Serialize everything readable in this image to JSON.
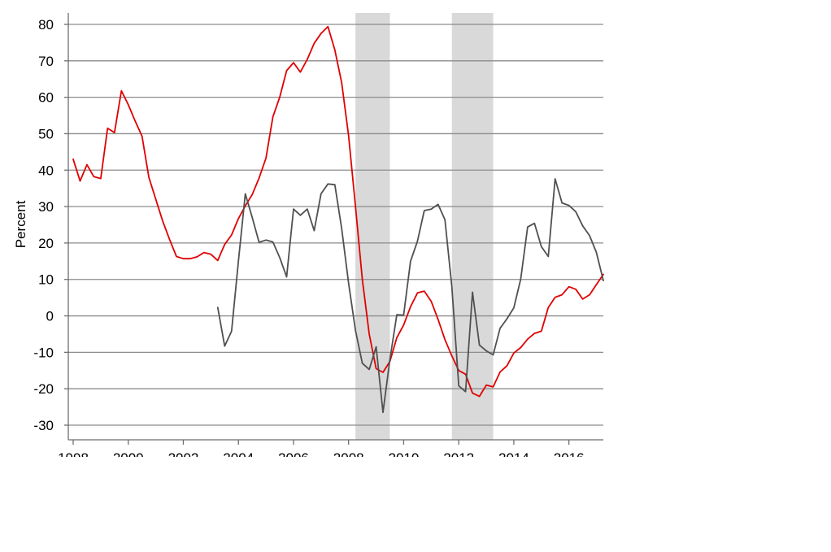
{
  "chart_data": {
    "type": "line",
    "ylabel": "Percent",
    "xlim": [
      1998,
      2017.25
    ],
    "ylim": [
      -32,
      83
    ],
    "x_ticks": [
      1998,
      2000,
      2002,
      2004,
      2006,
      2008,
      2010,
      2012,
      2014,
      2016
    ],
    "x_tick_labels": [
      "1998",
      "2000",
      "2002",
      "2004",
      "2006",
      "2008",
      "2010",
      "2012",
      "2014",
      "2016"
    ],
    "y_ticks": [
      80,
      70,
      60,
      50,
      40,
      30,
      20,
      10,
      0,
      -10,
      -20,
      -30
    ],
    "y_tick_labels": [
      "80",
      "70",
      "60",
      "50",
      "40",
      "30",
      "20",
      "10",
      "0",
      "-10",
      "-20",
      "-30"
    ],
    "grid": "horizontal",
    "legend": "none",
    "recession_bands": [
      {
        "start": 2008.25,
        "end": 2009.5
      },
      {
        "start": 2011.75,
        "end": 2013.25
      }
    ],
    "colors": {
      "red_series": "#e00000",
      "gray_series": "#505050",
      "band": "#d9d9d9",
      "grid": "#8c8c8c"
    },
    "series": [
      {
        "color": "#e00000",
        "points": [
          [
            1998.0,
            43
          ],
          [
            1998.25,
            37
          ],
          [
            1998.5,
            41.5
          ],
          [
            1998.75,
            38.2
          ],
          [
            1999.0,
            37.7
          ],
          [
            1999.25,
            51.5
          ],
          [
            1999.5,
            50.3
          ],
          [
            1999.75,
            61.8
          ],
          [
            2000.0,
            58
          ],
          [
            2000.25,
            53.5
          ],
          [
            2000.5,
            49.3
          ],
          [
            2000.75,
            38
          ],
          [
            2001.0,
            32
          ],
          [
            2001.25,
            26
          ],
          [
            2001.5,
            21
          ],
          [
            2001.75,
            16.3
          ],
          [
            2002.0,
            15.7
          ],
          [
            2002.25,
            15.7
          ],
          [
            2002.5,
            16.2
          ],
          [
            2002.75,
            17.4
          ],
          [
            2003.0,
            16.9
          ],
          [
            2003.25,
            15.2
          ],
          [
            2003.5,
            19.6
          ],
          [
            2003.75,
            22.2
          ],
          [
            2004.0,
            26.7
          ],
          [
            2004.25,
            30.2
          ],
          [
            2004.5,
            33.3
          ],
          [
            2004.75,
            37.8
          ],
          [
            2005.0,
            43.3
          ],
          [
            2005.25,
            54.6
          ],
          [
            2005.5,
            60
          ],
          [
            2005.75,
            67.3
          ],
          [
            2006.0,
            69.5
          ],
          [
            2006.25,
            66.9
          ],
          [
            2006.5,
            70.4
          ],
          [
            2006.75,
            74.8
          ],
          [
            2007.0,
            77.5
          ],
          [
            2007.25,
            79.4
          ],
          [
            2007.5,
            73
          ],
          [
            2007.75,
            64
          ],
          [
            2008.0,
            49.5
          ],
          [
            2008.25,
            30
          ],
          [
            2008.5,
            10
          ],
          [
            2008.75,
            -5
          ],
          [
            2009.0,
            -14.5
          ],
          [
            2009.25,
            -15.5
          ],
          [
            2009.5,
            -12.5
          ],
          [
            2009.75,
            -6
          ],
          [
            2010.0,
            -2.5
          ],
          [
            2010.25,
            2.5
          ],
          [
            2010.5,
            6.3
          ],
          [
            2010.75,
            6.8
          ],
          [
            2011.0,
            4
          ],
          [
            2011.25,
            -1
          ],
          [
            2011.5,
            -6.5
          ],
          [
            2011.75,
            -11
          ],
          [
            2012.0,
            -15
          ],
          [
            2012.25,
            -16
          ],
          [
            2012.5,
            -21.2
          ],
          [
            2012.75,
            -22.1
          ],
          [
            2013.0,
            -19
          ],
          [
            2013.25,
            -19.5
          ],
          [
            2013.5,
            -15.4
          ],
          [
            2013.75,
            -13.7
          ],
          [
            2014.0,
            -10.2
          ],
          [
            2014.25,
            -8.7
          ],
          [
            2014.5,
            -6.4
          ],
          [
            2014.75,
            -4.8
          ],
          [
            2015.0,
            -4.2
          ],
          [
            2015.25,
            2.3
          ],
          [
            2015.5,
            5.1
          ],
          [
            2015.75,
            5.8
          ],
          [
            2016.0,
            8
          ],
          [
            2016.25,
            7.3
          ],
          [
            2016.5,
            4.6
          ],
          [
            2016.75,
            5.8
          ],
          [
            2017.0,
            8.6
          ],
          [
            2017.25,
            11.4
          ]
        ]
      },
      {
        "color": "#505050",
        "points": [
          [
            2003.25,
            2.3
          ],
          [
            2003.5,
            -8.3
          ],
          [
            2003.75,
            -4.2
          ],
          [
            2004.0,
            15
          ],
          [
            2004.25,
            33.5
          ],
          [
            2004.5,
            27
          ],
          [
            2004.75,
            20.2
          ],
          [
            2005.0,
            20.8
          ],
          [
            2005.25,
            20.3
          ],
          [
            2005.5,
            16
          ],
          [
            2005.75,
            10.7
          ],
          [
            2006.0,
            29.3
          ],
          [
            2006.25,
            27.6
          ],
          [
            2006.5,
            29.3
          ],
          [
            2006.75,
            23.4
          ],
          [
            2007.0,
            33.5
          ],
          [
            2007.25,
            36.2
          ],
          [
            2007.5,
            36
          ],
          [
            2007.75,
            24
          ],
          [
            2008.0,
            9
          ],
          [
            2008.25,
            -4
          ],
          [
            2008.5,
            -13
          ],
          [
            2008.75,
            -14.7
          ],
          [
            2009.0,
            -8.5
          ],
          [
            2009.25,
            -26.5
          ],
          [
            2009.5,
            -12
          ],
          [
            2009.75,
            0.3
          ],
          [
            2010.0,
            0.2
          ],
          [
            2010.25,
            15
          ],
          [
            2010.5,
            20.5
          ],
          [
            2010.75,
            28.9
          ],
          [
            2011.0,
            29.3
          ],
          [
            2011.25,
            30.6
          ],
          [
            2011.5,
            26.4
          ],
          [
            2011.75,
            8
          ],
          [
            2012.0,
            -19.2
          ],
          [
            2012.25,
            -20.8
          ],
          [
            2012.5,
            6.5
          ],
          [
            2012.75,
            -8
          ],
          [
            2013.0,
            -9.6
          ],
          [
            2013.25,
            -10.7
          ],
          [
            2013.5,
            -3.4
          ],
          [
            2013.75,
            -0.8
          ],
          [
            2014.0,
            2.2
          ],
          [
            2014.25,
            10.1
          ],
          [
            2014.5,
            24.4
          ],
          [
            2014.75,
            25.4
          ],
          [
            2015.0,
            19
          ],
          [
            2015.25,
            16.3
          ],
          [
            2015.5,
            37.6
          ],
          [
            2015.75,
            31
          ],
          [
            2016.0,
            30.3
          ],
          [
            2016.25,
            28.6
          ],
          [
            2016.5,
            24.7
          ],
          [
            2016.75,
            22
          ],
          [
            2017.0,
            17.4
          ],
          [
            2017.25,
            9.7
          ]
        ]
      }
    ]
  }
}
